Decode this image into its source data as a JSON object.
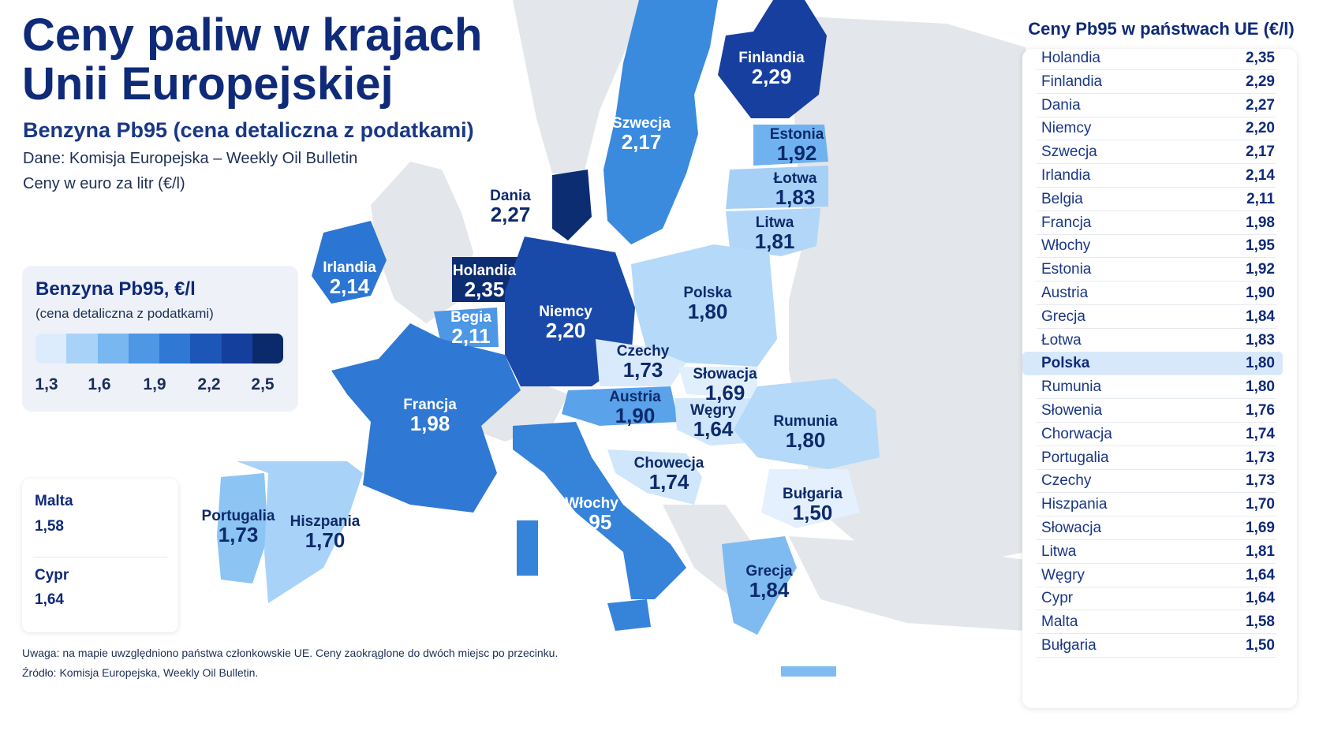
{
  "header": {
    "title_line1": "Ceny paliw w krajach",
    "title_line2": "Unii Europejskiej",
    "subtitle": "Benzyna Pb95 (cena detaliczna z podatkami)",
    "source_line": "Dane: Komisja Europejska – Weekly Oil Bulletin",
    "unit_line": "Ceny w euro za litr (€/l)"
  },
  "legend": {
    "title": "Benzyna Pb95, €/l",
    "subtitle": "(cena detaliczna z podatkami)",
    "scale_colors": [
      "#dcecfd",
      "#a9d2f8",
      "#79b7f0",
      "#4d97e4",
      "#2f78d3",
      "#1c57b8",
      "#143f9c",
      "#0b2a6b"
    ],
    "ticks": [
      "1,3",
      "1,6",
      "1,9",
      "2,2",
      "2,5"
    ]
  },
  "insets": [
    {
      "name": "Malta",
      "value": "1,58"
    },
    {
      "name": "Cypr",
      "value": "1,64"
    }
  ],
  "map_labels": [
    {
      "name": "Finlandia",
      "value": "2,29"
    },
    {
      "name": "Szwecja",
      "value": "2,17"
    },
    {
      "name": "Estonia",
      "value": "1,92"
    },
    {
      "name": "Łotwa",
      "value": "1,83"
    },
    {
      "name": "Litwa",
      "value": "1,81"
    },
    {
      "name": "Dania",
      "value": "2,27"
    },
    {
      "name": "Irlandia",
      "value": "2,14"
    },
    {
      "name": "Holandia",
      "value": "2,35"
    },
    {
      "name": "Begia",
      "value": "2,11"
    },
    {
      "name": "Niemcy",
      "value": "2,20"
    },
    {
      "name": "Polska",
      "value": "1,80"
    },
    {
      "name": "Czechy",
      "value": "1,73"
    },
    {
      "name": "Słowacja",
      "value": "1,69"
    },
    {
      "name": "Austria",
      "value": "1,90"
    },
    {
      "name": "Węgry",
      "value": "1,64"
    },
    {
      "name": "Francja",
      "value": "1,98"
    },
    {
      "name": "Rumunia",
      "value": "1,80"
    },
    {
      "name": "Chowecja",
      "value": "1,74"
    },
    {
      "name": "Bułgaria",
      "value": "1,50"
    },
    {
      "name": "Portugalia",
      "value": "1,73"
    },
    {
      "name": "Hiszpania",
      "value": "1,70"
    },
    {
      "name": "Włochy",
      "value": "1,95"
    },
    {
      "name": "Grecja",
      "value": "1,84"
    }
  ],
  "table": {
    "title": "Ceny Pb95 w państwach UE (€/l)",
    "highlight": "Polska",
    "rows": [
      {
        "country": "Holandia",
        "price": "2,35"
      },
      {
        "country": "Finlandia",
        "price": "2,29"
      },
      {
        "country": "Dania",
        "price": "2,27"
      },
      {
        "country": "Niemcy",
        "price": "2,20"
      },
      {
        "country": "Szwecja",
        "price": "2,17"
      },
      {
        "country": "Irlandia",
        "price": "2,14"
      },
      {
        "country": "Belgia",
        "price": "2,11"
      },
      {
        "country": "Francja",
        "price": "1,98"
      },
      {
        "country": "Włochy",
        "price": "1,95"
      },
      {
        "country": "Estonia",
        "price": "1,92"
      },
      {
        "country": "Austria",
        "price": "1,90"
      },
      {
        "country": "Grecja",
        "price": "1,84"
      },
      {
        "country": "Łotwa",
        "price": "1,83"
      },
      {
        "country": "Polska",
        "price": "1,80"
      },
      {
        "country": "Rumunia",
        "price": "1,80"
      },
      {
        "country": "Słowenia",
        "price": "1,76"
      },
      {
        "country": "Chorwacja",
        "price": "1,74"
      },
      {
        "country": "Portugalia",
        "price": "1,73"
      },
      {
        "country": "Czechy",
        "price": "1,73"
      },
      {
        "country": "Hiszpania",
        "price": "1,70"
      },
      {
        "country": "Słowacja",
        "price": "1,69"
      },
      {
        "country": "Litwa",
        "price": "1,81"
      },
      {
        "country": "Węgry",
        "price": "1,64"
      },
      {
        "country": "Cypr",
        "price": "1,64"
      },
      {
        "country": "Malta",
        "price": "1,58"
      },
      {
        "country": "Bułgaria",
        "price": "1,50"
      }
    ]
  },
  "footer": {
    "note": "Uwaga: na mapie uwzględniono państwa członkowskie UE. Ceny zaokrąglone do dwóch miejsc po przecinku.",
    "source": "Źródło: Komisja Europejska, Weekly Oil Bulletin."
  }
}
